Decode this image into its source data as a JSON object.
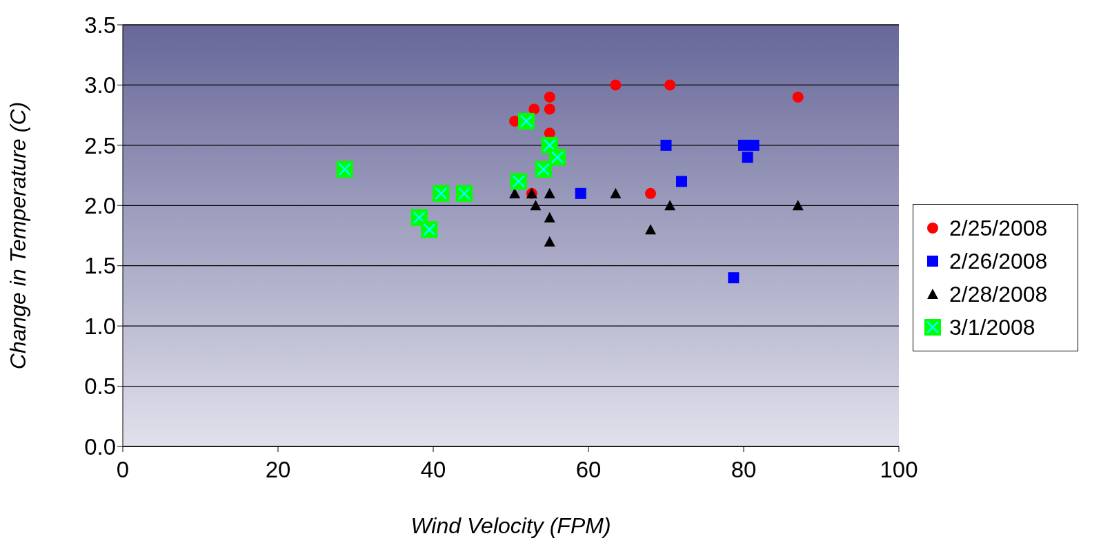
{
  "chart_data": {
    "type": "scatter",
    "xlabel": "Wind Velocity (FPM)",
    "ylabel": "Change in Temperature (C)",
    "xlim": [
      0,
      100
    ],
    "xticks": [
      0,
      20,
      40,
      60,
      80,
      100
    ],
    "ylim": [
      0,
      3.5
    ],
    "yticks": [
      {
        "value": 0,
        "label": "0.0"
      },
      {
        "value": 0.5,
        "label": "0.5"
      },
      {
        "value": 1,
        "label": "1.0"
      },
      {
        "value": 1.5,
        "label": "1.5"
      },
      {
        "value": 2,
        "label": "2.0"
      },
      {
        "value": 2.5,
        "label": "2.5"
      },
      {
        "value": 3,
        "label": "3.0"
      },
      {
        "value": 3.5,
        "label": "3.5"
      }
    ],
    "grid": "y",
    "legend": "right",
    "series": [
      {
        "name": "2/25/2008",
        "color": "#ff0000",
        "marker": "circle",
        "x": [
          50.5,
          53,
          55,
          55,
          55,
          52.7,
          63.5,
          70.5,
          68,
          87
        ],
        "values": [
          2.7,
          2.8,
          2.9,
          2.8,
          2.6,
          2.1,
          3.0,
          3.0,
          2.1,
          2.9
        ]
      },
      {
        "name": "2/26/2008",
        "color": "#0000ff",
        "marker": "square",
        "x": [
          59,
          70,
          72,
          78.7,
          80,
          81.3,
          80.5
        ],
        "values": [
          2.1,
          2.5,
          2.2,
          1.4,
          2.5,
          2.5,
          2.4
        ]
      },
      {
        "name": "2/28/2008",
        "color": "#000000",
        "marker": "triangle",
        "x": [
          50.5,
          52.7,
          53.2,
          55,
          55,
          55,
          63.5,
          68,
          70.5,
          87
        ],
        "values": [
          2.1,
          2.1,
          2.0,
          2.1,
          1.9,
          1.7,
          2.1,
          1.8,
          2.0,
          2.0
        ]
      },
      {
        "name": "3/1/2008",
        "color": "#00ff00",
        "x": [
          28.6,
          38.2,
          39.5,
          41,
          44,
          51,
          52,
          54.2,
          55,
          56
        ],
        "values": [
          2.3,
          1.9,
          1.8,
          2.1,
          2.1,
          2.2,
          2.7,
          2.3,
          2.5,
          2.4
        ]
      }
    ]
  }
}
